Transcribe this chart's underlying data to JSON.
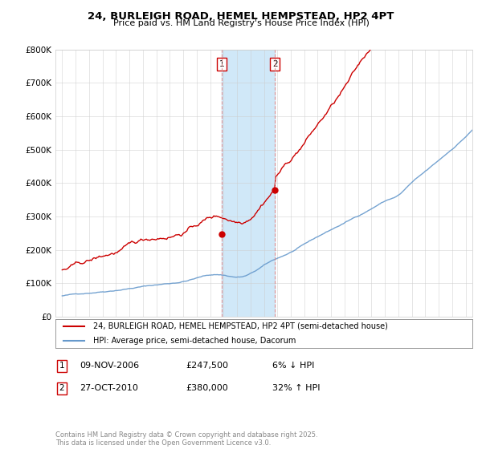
{
  "title": "24, BURLEIGH ROAD, HEMEL HEMPSTEAD, HP2 4PT",
  "subtitle": "Price paid vs. HM Land Registry's House Price Index (HPI)",
  "legend_line1": "24, BURLEIGH ROAD, HEMEL HEMPSTEAD, HP2 4PT (semi-detached house)",
  "legend_line2": "HPI: Average price, semi-detached house, Dacorum",
  "footnote": "Contains HM Land Registry data © Crown copyright and database right 2025.\nThis data is licensed under the Open Government Licence v3.0.",
  "sale1_label": "1",
  "sale1_date": "09-NOV-2006",
  "sale1_price": "£247,500",
  "sale1_hpi": "6% ↓ HPI",
  "sale2_label": "2",
  "sale2_date": "27-OCT-2010",
  "sale2_price": "£380,000",
  "sale2_hpi": "32% ↑ HPI",
  "sale1_x": 2006.86,
  "sale1_y": 247500,
  "sale2_x": 2010.82,
  "sale2_y": 380000,
  "vline1_x": 2006.86,
  "vline2_x": 2010.82,
  "ylim": [
    0,
    800000
  ],
  "xlim": [
    1994.5,
    2025.5
  ],
  "price_color": "#cc0000",
  "hpi_color": "#6699cc",
  "vline_color": "#cc0000",
  "span_color": "#d0e8f8",
  "background_color": "#ffffff",
  "grid_color": "#cccccc"
}
